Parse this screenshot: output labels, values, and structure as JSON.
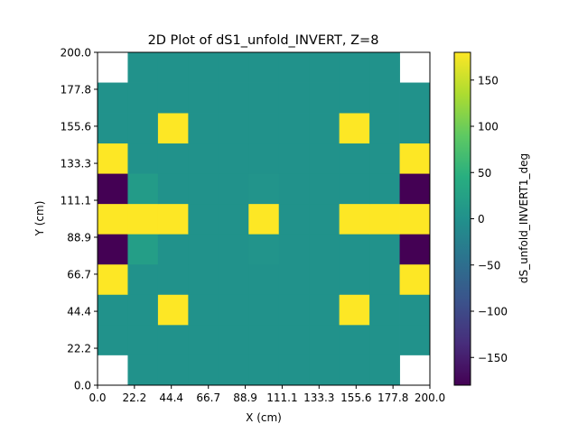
{
  "chart_data": {
    "type": "heatmap",
    "title": "2D Plot of dS1_unfold_INVERT, Z=8",
    "xlabel": "X (cm)",
    "ylabel": "Y (cm)",
    "colorbar_label": "dS_unfold_INVERT1_deg",
    "xlim": [
      0,
      200
    ],
    "ylim": [
      0,
      200
    ],
    "clim": [
      -180,
      180
    ],
    "colormap": "viridis",
    "x_ticks": [
      "0.0",
      "22.2",
      "44.4",
      "66.7",
      "88.9",
      "111.1",
      "133.3",
      "155.6",
      "177.8",
      "200.0"
    ],
    "y_ticks": [
      "0.0",
      "22.2",
      "44.4",
      "66.7",
      "88.9",
      "111.1",
      "133.3",
      "155.6",
      "177.8",
      "200.0"
    ],
    "colorbar_ticks": [
      "150",
      "100",
      "50",
      "0",
      "−50",
      "−100",
      "−150"
    ],
    "colorbar_tick_values": [
      150,
      100,
      50,
      0,
      -50,
      -100,
      -150
    ],
    "x_bin_edges": [
      0,
      18.18,
      36.36,
      54.55,
      72.73,
      90.91,
      109.09,
      127.27,
      145.45,
      163.64,
      181.82,
      200
    ],
    "y_bin_edges": [
      0,
      18.18,
      36.36,
      54.55,
      72.73,
      90.91,
      109.09,
      127.27,
      145.45,
      163.64,
      181.82,
      200
    ],
    "grid_note_rows_bottom_to_top": true,
    "z": [
      [
        null,
        2,
        2,
        2,
        2,
        2,
        2,
        2,
        2,
        2,
        null
      ],
      [
        2,
        2,
        2,
        2,
        2,
        2,
        2,
        2,
        2,
        2,
        2
      ],
      [
        2,
        2,
        180,
        2,
        2,
        2,
        2,
        2,
        180,
        2,
        2
      ],
      [
        180,
        2,
        2,
        2,
        2,
        2,
        2,
        2,
        2,
        2,
        180
      ],
      [
        -180,
        20,
        2,
        2,
        2,
        4,
        2,
        2,
        2,
        2,
        -180
      ],
      [
        180,
        180,
        180,
        2,
        2,
        180,
        2,
        2,
        180,
        180,
        180
      ],
      [
        -180,
        15,
        2,
        2,
        2,
        4,
        2,
        2,
        2,
        2,
        -180
      ],
      [
        180,
        2,
        2,
        2,
        2,
        2,
        2,
        2,
        2,
        2,
        180
      ],
      [
        2,
        2,
        180,
        2,
        2,
        2,
        2,
        2,
        180,
        2,
        2
      ],
      [
        2,
        2,
        2,
        2,
        2,
        2,
        2,
        2,
        2,
        2,
        2
      ],
      [
        null,
        2,
        2,
        2,
        2,
        2,
        2,
        2,
        2,
        2,
        null
      ]
    ]
  }
}
